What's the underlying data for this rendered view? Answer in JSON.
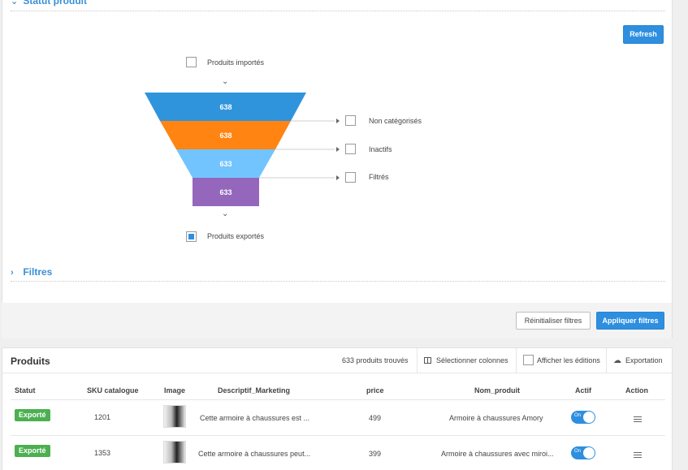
{
  "sections": {
    "statut_title": "Statut produit",
    "filtres_title": "Filtres"
  },
  "refresh_label": "Refresh",
  "funnel": {
    "top_label": "Produits importés",
    "bottom_label": "Produits exportés",
    "stages": [
      {
        "value": "638",
        "color": "#3094dc"
      },
      {
        "value": "638",
        "color": "#ff8412"
      },
      {
        "value": "633",
        "color": "#72c4ff"
      },
      {
        "value": "633",
        "color": "#9467bd"
      }
    ],
    "side_filters": [
      "Non catégorisés",
      "Inactifs",
      "Filtrés"
    ]
  },
  "actions": {
    "reset_label": "Réinitialiser filtres",
    "apply_label": "Appliquer filtres"
  },
  "products": {
    "title": "Produits",
    "count_text": "633 produits trouvés",
    "select_columns": "Sélectionner colonnes",
    "show_edits": "Afficher les éditions",
    "export": "Exportation",
    "columns": [
      "Statut",
      "SKU catalogue",
      "Image",
      "Descriptif_Marketing",
      "price",
      "Nom_produit",
      "Actif",
      "Action"
    ],
    "rows": [
      {
        "status": "Exporté",
        "sku": "1201",
        "description": "Cette armoire à chaussures est ...",
        "price": "499",
        "name": "Armoire à chaussures Amory",
        "active_label": "On"
      },
      {
        "status": "Exporté",
        "sku": "1353",
        "description": "Cette armoire à chaussures peut...",
        "price": "399",
        "name": "Armoire à chaussures avec miroi...",
        "active_label": "On"
      }
    ]
  }
}
